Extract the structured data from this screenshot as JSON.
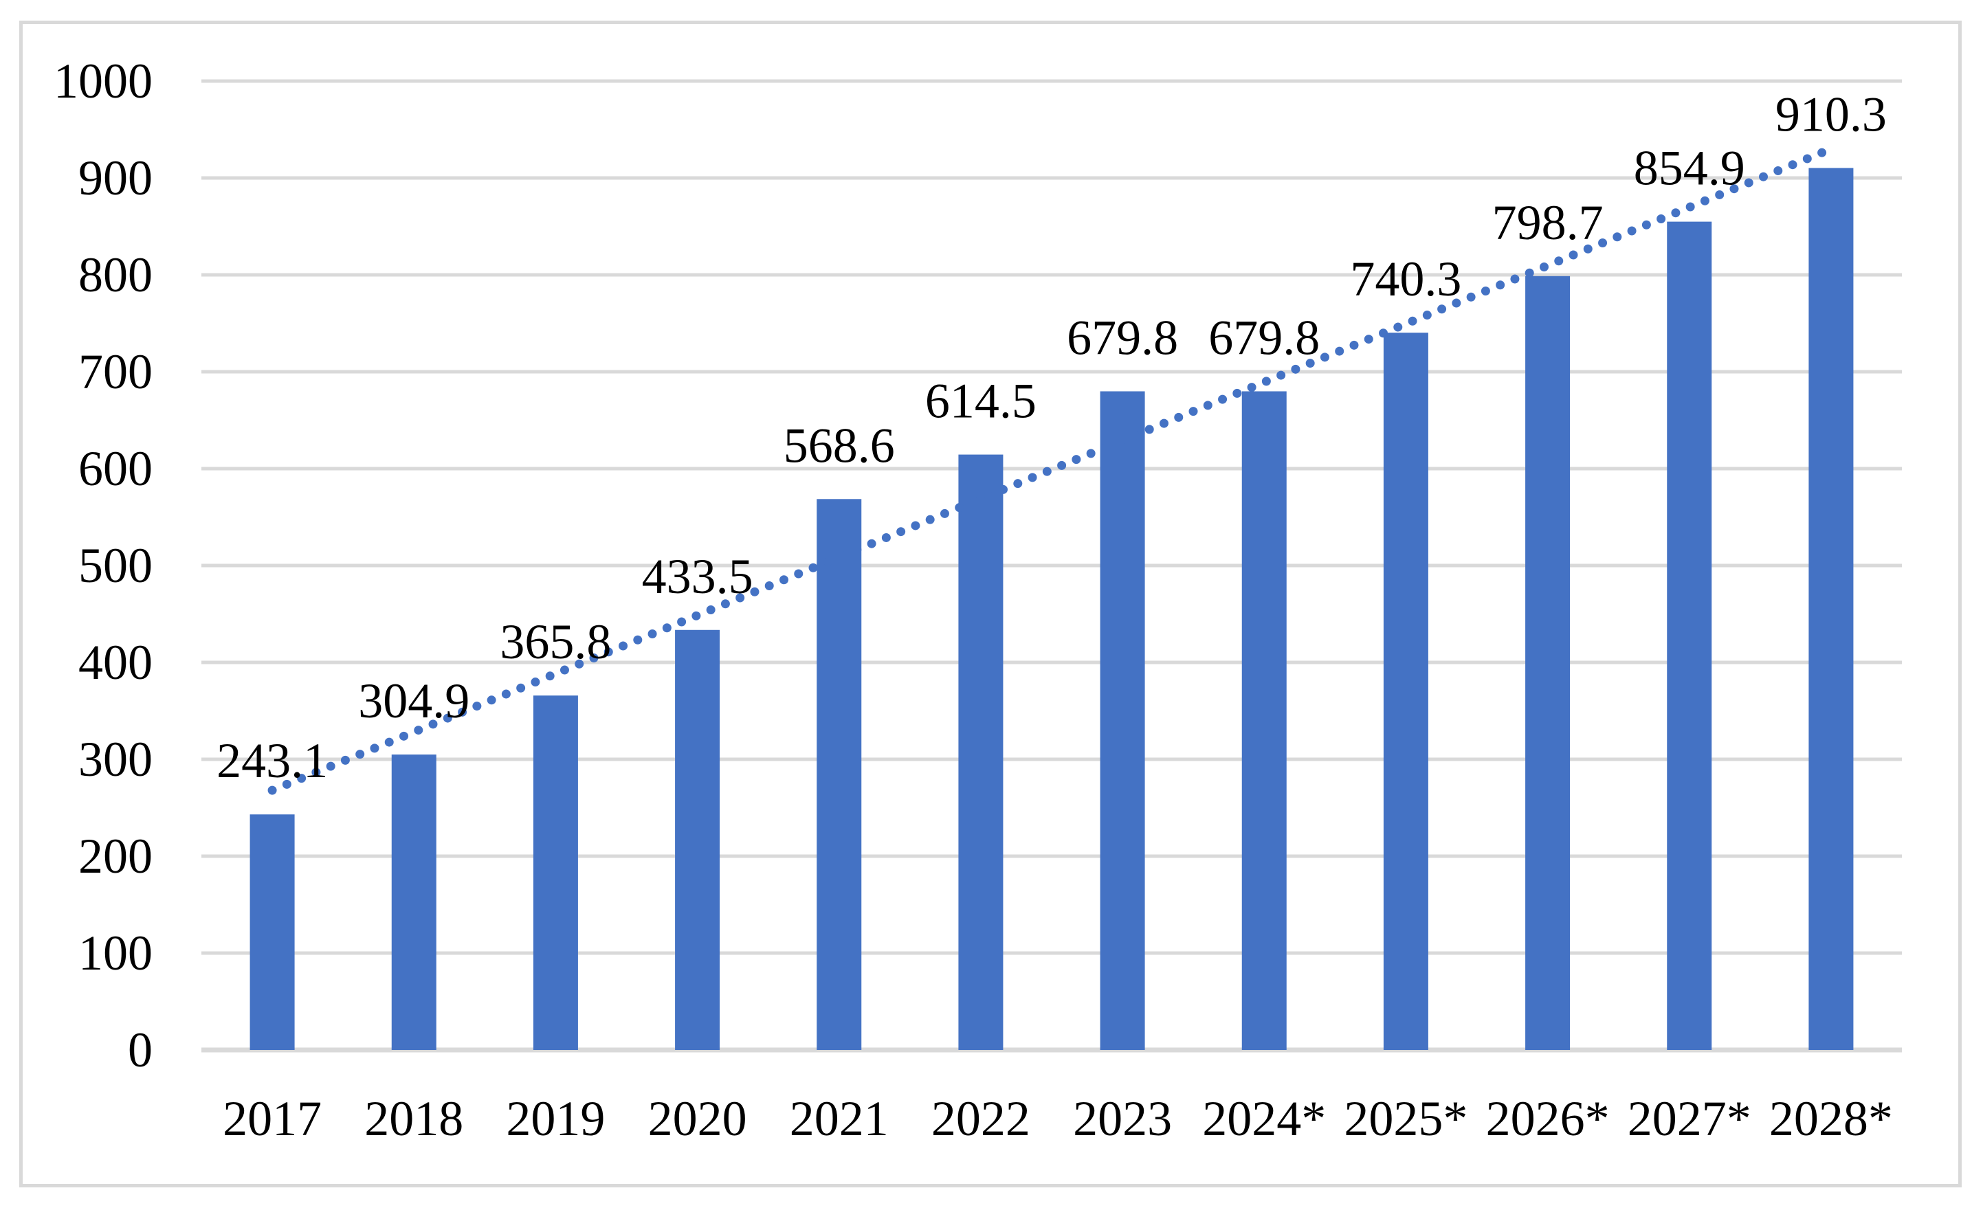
{
  "chart_data": {
    "type": "bar",
    "categories": [
      "2017",
      "2018",
      "2019",
      "2020",
      "2021",
      "2022",
      "2023",
      "2024*",
      "2025*",
      "2026*",
      "2027*",
      "2028*"
    ],
    "values": [
      243.1,
      304.9,
      365.8,
      433.5,
      568.6,
      614.5,
      679.8,
      679.8,
      740.3,
      798.7,
      854.9,
      910.3
    ],
    "data_labels": [
      "243.1",
      "304.9",
      "365.8",
      "433.5",
      "568.6",
      "614.5",
      "679.8",
      "679.8",
      "740.3",
      "798.7",
      "854.9",
      "910.3"
    ],
    "title": "",
    "xlabel": "",
    "ylabel": "",
    "ylim": [
      0,
      1000
    ],
    "y_ticks": [
      0,
      100,
      200,
      300,
      400,
      500,
      600,
      700,
      800,
      900,
      1000
    ],
    "grid": true,
    "legend": "none",
    "bar_color": "#4472C4",
    "trendline": {
      "style": "dotted",
      "color": "#4472C4",
      "start_value": 268,
      "end_value": 930
    },
    "gridline_color": "#D9D9D9",
    "axis_line_color": "#D9D9D9",
    "frame_color": "#D9D9D9",
    "text_color": "#000000"
  }
}
